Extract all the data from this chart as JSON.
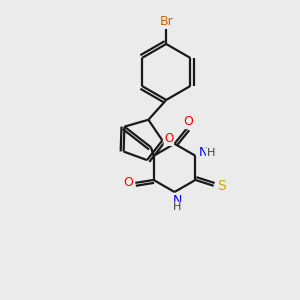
{
  "background_color": "#ebebeb",
  "bond_color": "#1a1a1a",
  "atom_colors": {
    "O": "#ff0000",
    "N": "#0000ff",
    "S": "#ccaa00",
    "Br": "#cc6600",
    "C": "#1a1a1a",
    "H": "#404040"
  },
  "lw": 1.6,
  "fs": 8.5
}
